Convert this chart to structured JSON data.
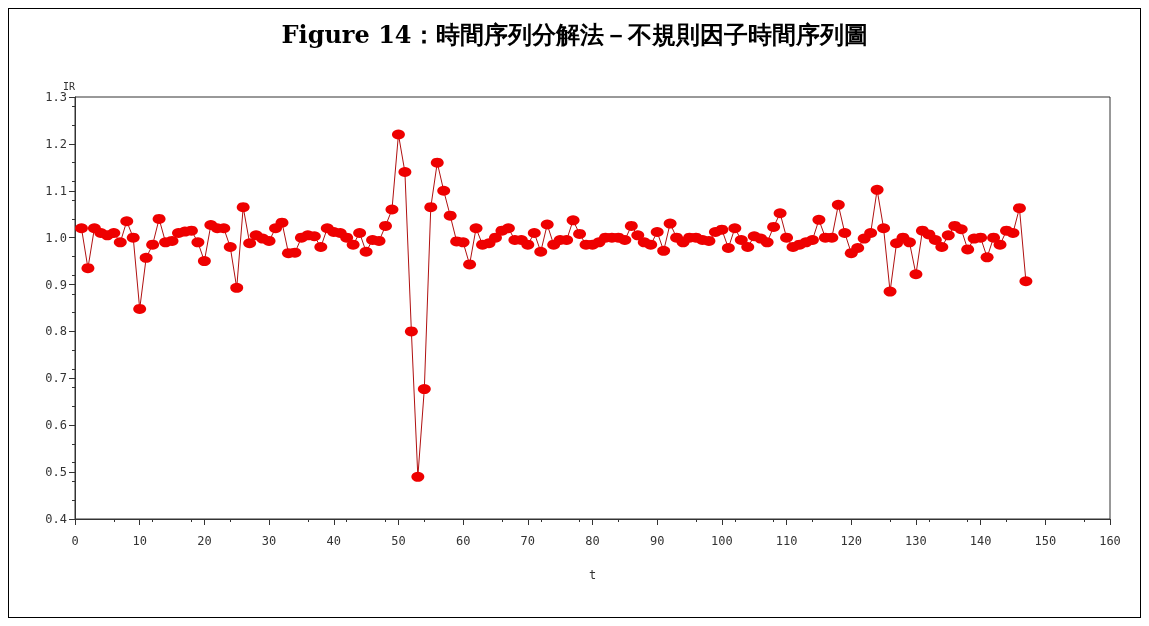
{
  "chart_data": {
    "type": "line",
    "title": "Figure 14：時間序列分解法－不規則因子時間序列圖",
    "xlabel": "t",
    "ylabel": "IR",
    "x": [
      1,
      2,
      3,
      4,
      5,
      6,
      7,
      8,
      9,
      10,
      11,
      12,
      13,
      14,
      15,
      16,
      17,
      18,
      19,
      20,
      21,
      22,
      23,
      24,
      25,
      26,
      27,
      28,
      29,
      30,
      31,
      32,
      33,
      34,
      35,
      36,
      37,
      38,
      39,
      40,
      41,
      42,
      43,
      44,
      45,
      46,
      47,
      48,
      49,
      50,
      51,
      52,
      53,
      54,
      55,
      56,
      57,
      58,
      59,
      60,
      61,
      62,
      63,
      64,
      65,
      66,
      67,
      68,
      69,
      70,
      71,
      72,
      73,
      74,
      75,
      76,
      77,
      78,
      79,
      80,
      81,
      82,
      83,
      84,
      85,
      86,
      87,
      88,
      89,
      90,
      91,
      92,
      93,
      94,
      95,
      96,
      97,
      98,
      99,
      100,
      101,
      102,
      103,
      104,
      105,
      106,
      107,
      108,
      109,
      110,
      111,
      112,
      113,
      114,
      115,
      116,
      117,
      118,
      119,
      120,
      121,
      122,
      123,
      124,
      125,
      126,
      127,
      128,
      129,
      130,
      131,
      132,
      133,
      134,
      135,
      136,
      137,
      138,
      139,
      140,
      141,
      142,
      143,
      144,
      145,
      146,
      147
    ],
    "series": [
      {
        "color": "#ee0000",
        "values": [
          1.02,
          0.935,
          1.02,
          1.01,
          1.005,
          1.01,
          0.99,
          1.035,
          1.0,
          0.848,
          0.957,
          0.985,
          1.04,
          0.99,
          0.993,
          1.01,
          1.013,
          1.015,
          0.99,
          0.95,
          1.027,
          1.02,
          1.02,
          0.98,
          0.893,
          1.065,
          0.988,
          1.005,
          0.998,
          0.993,
          1.02,
          1.032,
          0.967,
          0.968,
          1.0,
          1.005,
          1.003,
          0.98,
          1.02,
          1.012,
          1.01,
          1.0,
          0.985,
          1.01,
          0.97,
          0.995,
          0.993,
          1.025,
          1.06,
          1.22,
          1.14,
          0.8,
          0.49,
          0.677,
          1.065,
          1.16,
          1.1,
          1.047,
          0.992,
          0.99,
          0.943,
          1.02,
          0.985,
          0.988,
          1.0,
          1.015,
          1.02,
          0.995,
          0.995,
          0.985,
          1.01,
          0.97,
          1.028,
          0.985,
          0.995,
          0.995,
          1.037,
          1.008,
          0.985,
          0.985,
          0.99,
          1.0,
          1.0,
          1.0,
          0.995,
          1.025,
          1.005,
          0.99,
          0.985,
          1.012,
          0.972,
          1.03,
          1.0,
          0.99,
          1.0,
          1.0,
          0.995,
          0.993,
          1.012,
          1.017,
          0.978,
          1.02,
          0.995,
          0.98,
          1.003,
          0.998,
          0.99,
          1.023,
          1.052,
          1.0,
          0.98,
          0.985,
          0.99,
          0.995,
          1.038,
          1.0,
          1.0,
          1.07,
          1.01,
          0.967,
          0.978,
          0.998,
          1.01,
          1.102,
          1.02,
          0.885,
          0.988,
          1.0,
          0.99,
          0.922,
          1.015,
          1.007,
          0.995,
          0.98,
          1.005,
          1.025,
          1.018,
          0.975,
          0.998,
          1.0,
          0.958,
          1.0,
          0.985,
          1.015,
          1.01,
          1.063,
          0.907
        ]
      }
    ],
    "xlim": [
      0,
      160
    ],
    "xticks": [
      0,
      10,
      20,
      30,
      40,
      50,
      60,
      70,
      80,
      90,
      100,
      110,
      120,
      130,
      140,
      150,
      160
    ],
    "ylim": [
      0.4,
      1.3
    ],
    "yticks": [
      0.4,
      0.5,
      0.6,
      0.7,
      0.8,
      0.9,
      {
        "value": 1.0,
        "label": "1.0"
      },
      1.1,
      1.2,
      1.3
    ],
    "grid": false,
    "marker": "circle",
    "line_style": "solid"
  }
}
